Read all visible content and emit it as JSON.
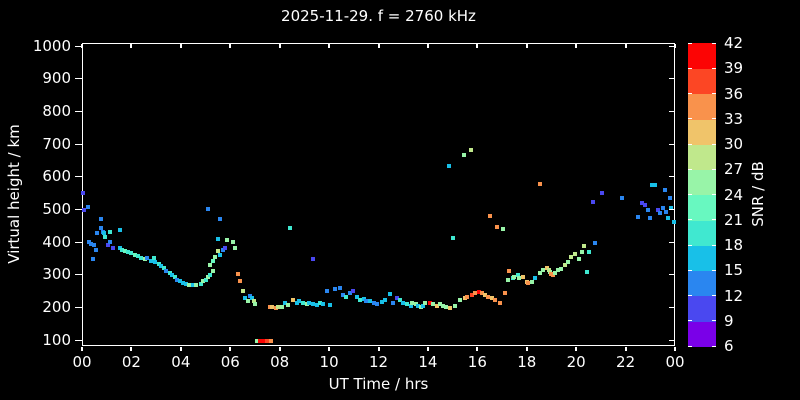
{
  "title": "2025-11-29. f = 2760 kHz",
  "colors": {
    "background": "#000000",
    "foreground": "#ffffff"
  },
  "x_axis": {
    "label": "UT Time / hrs",
    "tick_labels": [
      "00",
      "02",
      "04",
      "06",
      "08",
      "10",
      "12",
      "14",
      "16",
      "18",
      "20",
      "22",
      "00"
    ],
    "tick_step_hours": 2,
    "min": 0,
    "max": 24
  },
  "y_axis": {
    "label": "Virtual height / km",
    "tick_labels": [
      "100",
      "200",
      "300",
      "400",
      "500",
      "600",
      "700",
      "800",
      "900",
      "1000"
    ],
    "min": 100,
    "max": 1000
  },
  "colorbar": {
    "label": "SNR / dB",
    "min": 6,
    "max": 42,
    "step": 3,
    "tick_labels": [
      "6",
      "9",
      "12",
      "15",
      "18",
      "21",
      "24",
      "27",
      "30",
      "33",
      "36",
      "39",
      "42"
    ],
    "segment_colors": [
      "#7a00e8",
      "#4a48f0",
      "#2a86f0",
      "#18c0e8",
      "#40e8d0",
      "#68f8c0",
      "#98f4a8",
      "#c0e88c",
      "#f0c46a",
      "#f9924c",
      "#fc4624",
      "#fc0404"
    ]
  },
  "chart_data": {
    "type": "scatter",
    "title": "2025-11-29. f = 2760 kHz",
    "xlabel": "UT Time / hrs",
    "ylabel": "Virtual height / km",
    "xlim": [
      0,
      24
    ],
    "ylim": [
      100,
      1000
    ],
    "grid": false,
    "marker": "square",
    "colorbar_label": "SNR / dB",
    "colorbar_range": [
      6,
      42
    ],
    "points_format": [
      "ut_hours",
      "virtual_height_km",
      "snr_db"
    ],
    "points": [
      [
        0.05,
        550,
        11
      ],
      [
        0.1,
        495,
        11
      ],
      [
        0.25,
        505,
        14
      ],
      [
        0.3,
        400,
        14
      ],
      [
        0.35,
        393,
        14
      ],
      [
        0.45,
        345,
        14
      ],
      [
        0.5,
        390,
        14
      ],
      [
        0.55,
        375,
        14
      ],
      [
        0.6,
        425,
        14
      ],
      [
        0.75,
        470,
        14
      ],
      [
        0.75,
        440,
        14
      ],
      [
        0.85,
        430,
        14
      ],
      [
        0.9,
        425,
        17
      ],
      [
        0.95,
        415,
        20
      ],
      [
        1.05,
        390,
        11
      ],
      [
        1.15,
        400,
        14
      ],
      [
        1.15,
        430,
        20
      ],
      [
        1.25,
        380,
        11
      ],
      [
        1.55,
        435,
        17
      ],
      [
        1.55,
        380,
        17
      ],
      [
        1.6,
        375,
        20
      ],
      [
        1.75,
        372,
        23
      ],
      [
        1.85,
        368,
        20
      ],
      [
        2.0,
        365,
        20
      ],
      [
        2.15,
        358,
        23
      ],
      [
        2.25,
        355,
        20
      ],
      [
        2.4,
        350,
        20
      ],
      [
        2.55,
        347,
        26
      ],
      [
        2.65,
        350,
        14
      ],
      [
        2.8,
        341,
        17
      ],
      [
        2.9,
        350,
        20
      ],
      [
        2.95,
        338,
        17
      ],
      [
        3.1,
        331,
        20
      ],
      [
        3.2,
        325,
        17
      ],
      [
        3.3,
        319,
        20
      ],
      [
        3.4,
        310,
        14
      ],
      [
        3.55,
        304,
        20
      ],
      [
        3.65,
        298,
        17
      ],
      [
        3.75,
        291,
        20
      ],
      [
        3.85,
        282,
        14
      ],
      [
        3.95,
        279,
        17
      ],
      [
        4.1,
        273,
        17
      ],
      [
        4.2,
        270,
        17
      ],
      [
        4.35,
        267,
        26
      ],
      [
        4.5,
        267,
        17
      ],
      [
        4.6,
        267,
        26
      ],
      [
        4.8,
        270,
        20
      ],
      [
        4.9,
        279,
        26
      ],
      [
        5.0,
        282,
        20
      ],
      [
        5.1,
        291,
        26
      ],
      [
        5.2,
        298,
        20
      ],
      [
        5.3,
        310,
        26
      ],
      [
        5.2,
        328,
        26
      ],
      [
        5.3,
        341,
        23
      ],
      [
        5.4,
        353,
        26
      ],
      [
        5.5,
        372,
        29
      ],
      [
        5.7,
        375,
        14
      ],
      [
        5.1,
        500,
        14
      ],
      [
        5.5,
        408,
        17
      ],
      [
        5.6,
        468,
        14
      ],
      [
        5.6,
        360,
        17
      ],
      [
        5.8,
        380,
        11
      ],
      [
        5.85,
        406,
        26
      ],
      [
        6.1,
        400,
        26
      ],
      [
        6.2,
        380,
        26
      ],
      [
        6.3,
        300,
        35
      ],
      [
        6.4,
        278,
        35
      ],
      [
        6.5,
        248,
        29
      ],
      [
        6.6,
        226,
        17
      ],
      [
        6.7,
        217,
        26
      ],
      [
        6.8,
        232,
        14
      ],
      [
        6.9,
        228,
        17
      ],
      [
        6.95,
        219,
        29
      ],
      [
        7.0,
        208,
        26
      ],
      [
        7.1,
        95,
        26
      ],
      [
        7.2,
        95,
        41
      ],
      [
        7.35,
        95,
        41
      ],
      [
        7.5,
        95,
        38
      ],
      [
        7.65,
        95,
        35
      ],
      [
        7.6,
        201,
        35
      ],
      [
        7.7,
        198,
        32
      ],
      [
        7.85,
        195,
        35
      ],
      [
        7.95,
        198,
        29
      ],
      [
        8.1,
        198,
        26
      ],
      [
        8.2,
        212,
        17
      ],
      [
        8.35,
        205,
        26
      ],
      [
        8.55,
        220,
        32
      ],
      [
        8.7,
        212,
        17
      ],
      [
        8.8,
        217,
        17
      ],
      [
        8.95,
        212,
        20
      ],
      [
        9.1,
        210,
        26
      ],
      [
        9.2,
        212,
        17
      ],
      [
        9.35,
        210,
        17
      ],
      [
        9.5,
        205,
        17
      ],
      [
        9.65,
        212,
        20
      ],
      [
        9.75,
        208,
        17
      ],
      [
        10.05,
        205,
        17
      ],
      [
        8.4,
        441,
        20
      ],
      [
        9.35,
        346,
        11
      ],
      [
        9.9,
        248,
        14
      ],
      [
        10.25,
        255,
        14
      ],
      [
        10.45,
        258,
        14
      ],
      [
        10.55,
        235,
        14
      ],
      [
        10.7,
        230,
        20
      ],
      [
        10.85,
        242,
        14
      ],
      [
        10.95,
        250,
        11
      ],
      [
        11.15,
        230,
        17
      ],
      [
        11.25,
        222,
        20
      ],
      [
        11.4,
        225,
        17
      ],
      [
        11.5,
        219,
        14
      ],
      [
        11.65,
        217,
        17
      ],
      [
        11.8,
        212,
        14
      ],
      [
        11.95,
        210,
        14
      ],
      [
        12.15,
        215,
        17
      ],
      [
        12.25,
        222,
        17
      ],
      [
        12.45,
        240,
        17
      ],
      [
        12.6,
        212,
        14
      ],
      [
        12.75,
        228,
        11
      ],
      [
        12.85,
        220,
        20
      ],
      [
        13.0,
        213,
        17
      ],
      [
        13.15,
        210,
        20
      ],
      [
        13.3,
        204,
        17
      ],
      [
        13.35,
        213,
        26
      ],
      [
        13.5,
        210,
        26
      ],
      [
        13.6,
        204,
        17
      ],
      [
        13.7,
        199,
        26
      ],
      [
        13.8,
        204,
        17
      ],
      [
        13.9,
        213,
        26
      ],
      [
        14.1,
        213,
        41
      ],
      [
        14.2,
        210,
        26
      ],
      [
        14.35,
        204,
        32
      ],
      [
        14.5,
        208,
        26
      ],
      [
        14.6,
        204,
        26
      ],
      [
        14.75,
        199,
        26
      ],
      [
        14.9,
        196,
        32
      ],
      [
        15.1,
        204,
        26
      ],
      [
        15.3,
        220,
        26
      ],
      [
        15.5,
        226,
        32
      ],
      [
        15.6,
        229,
        35
      ],
      [
        15.8,
        235,
        38
      ],
      [
        15.9,
        241,
        35
      ],
      [
        16.05,
        244,
        41
      ],
      [
        16.2,
        241,
        35
      ],
      [
        16.3,
        235,
        32
      ],
      [
        16.45,
        229,
        35
      ],
      [
        16.6,
        226,
        32
      ],
      [
        16.7,
        220,
        35
      ],
      [
        16.9,
        213,
        35
      ],
      [
        17.1,
        241,
        35
      ],
      [
        14.85,
        631,
        17
      ],
      [
        15.0,
        411,
        20
      ],
      [
        15.45,
        665,
        26
      ],
      [
        15.75,
        680,
        29
      ],
      [
        16.5,
        478,
        35
      ],
      [
        16.8,
        444,
        35
      ],
      [
        17.05,
        438,
        26
      ],
      [
        18.55,
        576,
        35
      ],
      [
        17.25,
        282,
        26
      ],
      [
        17.3,
        310,
        35
      ],
      [
        17.45,
        288,
        20
      ],
      [
        17.5,
        291,
        26
      ],
      [
        17.65,
        297,
        20
      ],
      [
        17.7,
        288,
        26
      ],
      [
        17.85,
        291,
        32
      ],
      [
        18.0,
        276,
        32
      ],
      [
        18.05,
        273,
        35
      ],
      [
        18.2,
        276,
        26
      ],
      [
        18.35,
        288,
        17
      ],
      [
        18.55,
        304,
        26
      ],
      [
        18.65,
        313,
        26
      ],
      [
        18.8,
        319,
        32
      ],
      [
        18.95,
        307,
        26
      ],
      [
        19.05,
        297,
        35
      ],
      [
        18.9,
        313,
        29
      ],
      [
        19.0,
        301,
        35
      ],
      [
        19.15,
        304,
        26
      ],
      [
        19.25,
        313,
        26
      ],
      [
        19.4,
        317,
        26
      ],
      [
        19.55,
        329,
        29
      ],
      [
        19.65,
        338,
        26
      ],
      [
        19.8,
        354,
        29
      ],
      [
        19.95,
        363,
        29
      ],
      [
        20.1,
        347,
        26
      ],
      [
        20.25,
        369,
        26
      ],
      [
        20.3,
        385,
        29
      ],
      [
        20.45,
        307,
        20
      ],
      [
        20.5,
        368,
        20
      ],
      [
        20.7,
        521,
        11
      ],
      [
        20.75,
        395,
        14
      ],
      [
        21.05,
        549,
        11
      ],
      [
        21.85,
        533,
        14
      ],
      [
        22.5,
        475,
        14
      ],
      [
        22.65,
        518,
        11
      ],
      [
        22.8,
        512,
        11
      ],
      [
        22.9,
        496,
        14
      ],
      [
        23.0,
        472,
        14
      ],
      [
        23.05,
        573,
        17
      ],
      [
        23.2,
        573,
        17
      ],
      [
        23.3,
        496,
        11
      ],
      [
        23.4,
        487,
        14
      ],
      [
        23.5,
        503,
        14
      ],
      [
        23.6,
        558,
        14
      ],
      [
        23.65,
        490,
        14
      ],
      [
        23.7,
        472,
        17
      ],
      [
        23.8,
        533,
        14
      ],
      [
        23.85,
        503,
        17
      ],
      [
        23.95,
        460,
        17
      ]
    ]
  }
}
